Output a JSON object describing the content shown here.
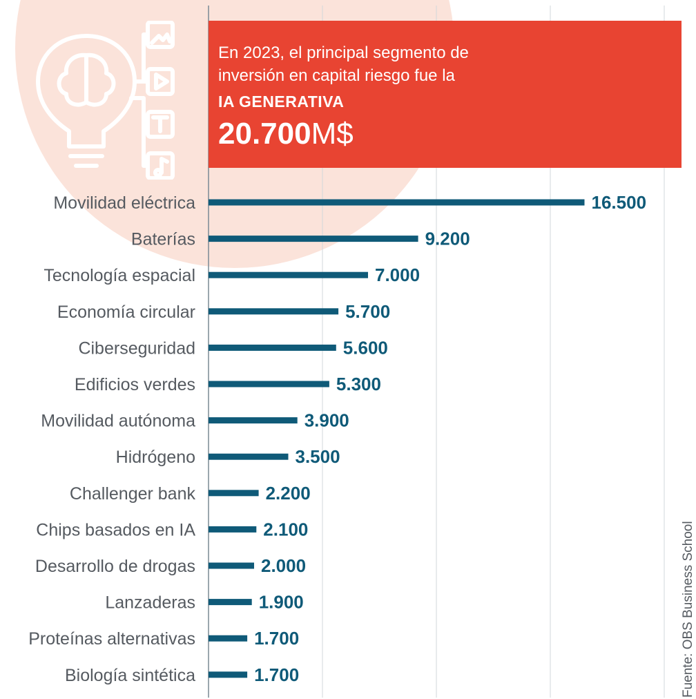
{
  "headline": {
    "text": "En 2023, el principal segmento de inversión en capital riesgo fue la",
    "highlight": "IA GENERATIVA",
    "value": "20.700",
    "unit": "M$"
  },
  "source": "Fuente: OBS Business School",
  "icon": "lightbulb-brain-media-icon",
  "colors": {
    "bar": "#0f5a78",
    "value_text": "#0f5a78",
    "highlight_box": "#e84432",
    "background_circle": "#fbe3da",
    "grid": "#d0d7db",
    "label_text": "#555a60"
  },
  "chart_data": {
    "type": "bar",
    "orientation": "horizontal",
    "categories": [
      "Movilidad eléctrica",
      "Baterías",
      "Tecnología espacial",
      "Economía circular",
      "Ciberseguridad",
      "Edificios verdes",
      "Movilidad autónoma",
      "Hidrógeno",
      "Challenger bank",
      "Chips basados en IA",
      "Desarrollo de drogas",
      "Lanzaderas",
      "Proteínas alternativas",
      "Biología sintética"
    ],
    "values": [
      16500,
      9200,
      7000,
      5700,
      5600,
      5300,
      3900,
      3500,
      2200,
      2100,
      2000,
      1900,
      1700,
      1700
    ],
    "value_labels": [
      "16.500",
      "9.200",
      "7.000",
      "5.700",
      "5.600",
      "5.300",
      "3.900",
      "3.500",
      "2.200",
      "2.100",
      "2.000",
      "1.900",
      "1.700",
      "1.700"
    ],
    "xlim": [
      0,
      20000
    ],
    "grid": true,
    "legend": "none"
  }
}
